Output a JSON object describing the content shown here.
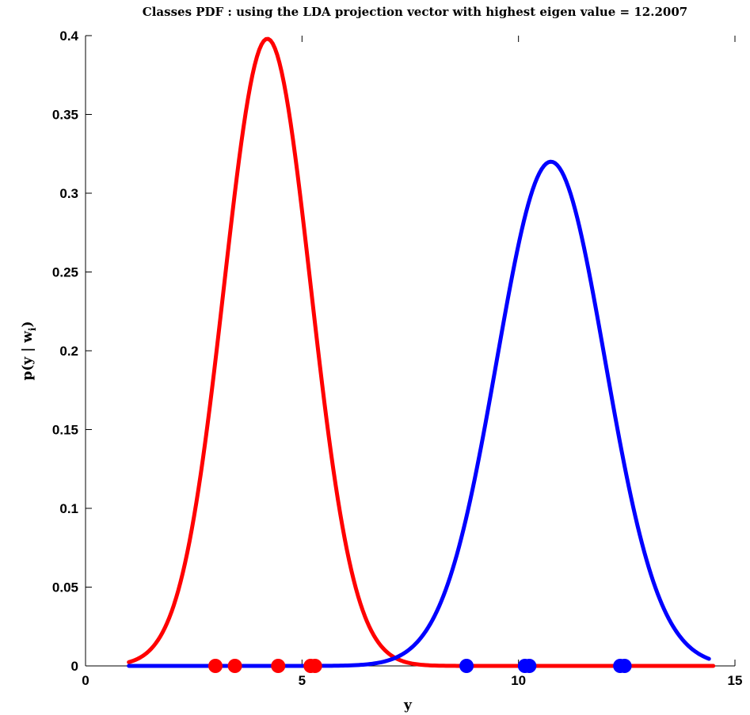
{
  "chart_data": {
    "type": "line",
    "title": "Classes PDF : using the LDA projection vector with highest eigen value = 12.2007",
    "xlabel": "y",
    "ylabel": "p(y | w_i)",
    "ylabel_main": "p(y | w",
    "ylabel_sub": "i",
    "ylabel_close": ")",
    "xlim": [
      0,
      15
    ],
    "ylim": [
      0,
      0.4
    ],
    "xticks": [
      0,
      5,
      10,
      15
    ],
    "xtick_labels": [
      "0",
      "5",
      "10",
      "15"
    ],
    "yticks": [
      0,
      0.05,
      0.1,
      0.15,
      0.2,
      0.25,
      0.3,
      0.35,
      0.4
    ],
    "ytick_labels": [
      "0",
      "0.05",
      "0.1",
      "0.15",
      "0.2",
      "0.25",
      "0.3",
      "0.35",
      "0.4"
    ],
    "grid": false,
    "series": [
      {
        "color": "#ff0000",
        "curve": {
          "mean": 4.2,
          "std": 1.0,
          "peak": 0.398,
          "x_start": 1.0,
          "x_end": 14.5
        },
        "sample_points": [
          3.0,
          3.45,
          4.45,
          5.2,
          5.3
        ]
      },
      {
        "color": "#0000ff",
        "curve": {
          "mean": 10.75,
          "std": 1.25,
          "peak": 0.32,
          "x_start": 1.0,
          "x_end": 14.4
        },
        "sample_points": [
          8.8,
          10.15,
          10.25,
          12.35,
          12.45
        ]
      }
    ]
  }
}
